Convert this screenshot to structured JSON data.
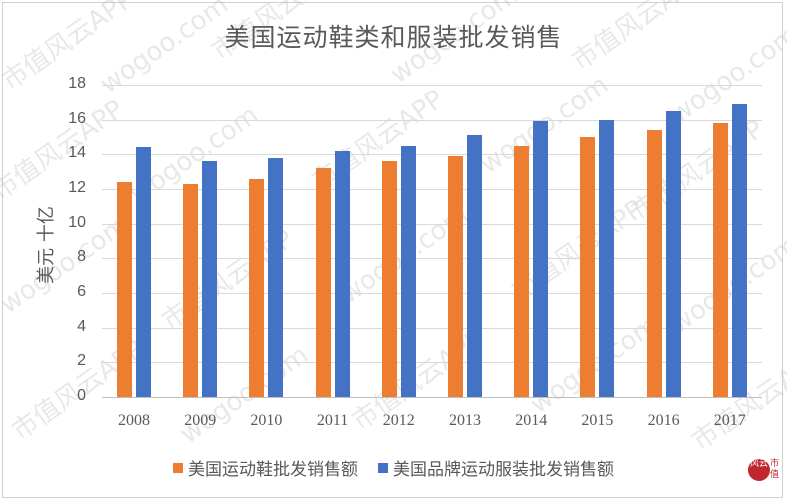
{
  "chart_data": {
    "type": "bar",
    "title": "美国运动鞋类和服装批发销售",
    "xlabel": "",
    "ylabel": "美元 十亿",
    "ylim": [
      0,
      18
    ],
    "yticks": [
      0,
      2,
      4,
      6,
      8,
      10,
      12,
      14,
      16,
      18
    ],
    "grid": true,
    "legend_position": "bottom",
    "categories": [
      "2008",
      "2009",
      "2010",
      "2011",
      "2012",
      "2013",
      "2014",
      "2015",
      "2016",
      "2017"
    ],
    "series": [
      {
        "name": "美国运动鞋批发销售额",
        "color": "#ED7D31",
        "values": [
          12.4,
          12.3,
          12.6,
          13.2,
          13.6,
          13.9,
          14.5,
          15.0,
          15.4,
          15.8
        ]
      },
      {
        "name": "美国品牌运动服装批发销售额",
        "color": "#4472C4",
        "values": [
          14.4,
          13.6,
          13.8,
          14.2,
          14.5,
          15.1,
          15.9,
          16.0,
          16.5,
          16.9
        ]
      }
    ]
  },
  "watermark": {
    "texts": [
      "市值风云APP",
      "wogoo.com"
    ]
  },
  "logo": {
    "circle_text": "风云",
    "side_text": "市值"
  }
}
